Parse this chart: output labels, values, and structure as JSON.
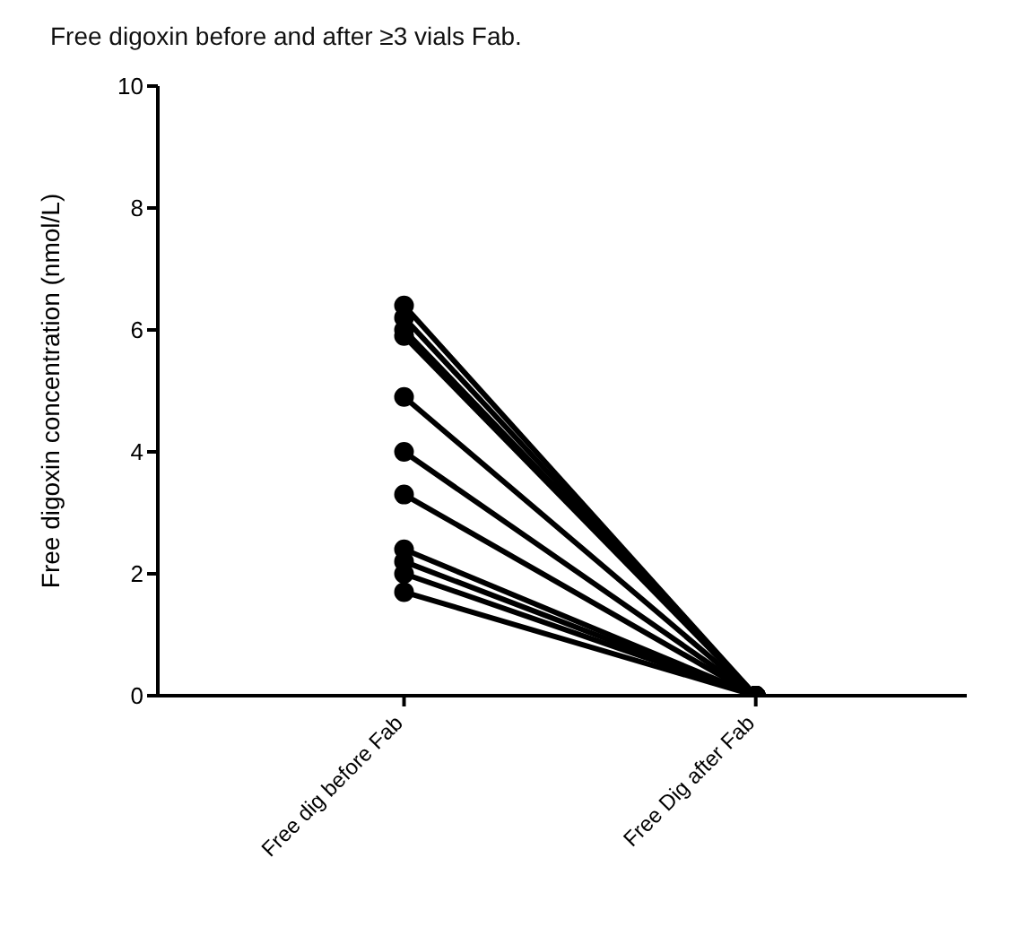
{
  "chart_data": {
    "type": "line",
    "title": "Free digoxin before and after ≥3 vials Fab.",
    "ylabel": "Free digoxin concentration (nmol/L)",
    "categories": [
      "Free dig before Fab",
      "Free Dig after Fab"
    ],
    "ylim": [
      0,
      10
    ],
    "yticks": [
      0,
      2,
      4,
      6,
      8,
      10
    ],
    "marker": "circle",
    "line_style": "solid",
    "series": [
      {
        "color": "#000000",
        "values": [
          6.4,
          0
        ]
      },
      {
        "color": "#000000",
        "values": [
          6.2,
          0
        ]
      },
      {
        "color": "#000000",
        "values": [
          6.0,
          0
        ]
      },
      {
        "color": "#000000",
        "values": [
          5.9,
          0
        ]
      },
      {
        "color": "#000000",
        "values": [
          4.9,
          0
        ]
      },
      {
        "color": "#000000",
        "values": [
          4.0,
          0
        ]
      },
      {
        "color": "#000000",
        "values": [
          3.3,
          0
        ]
      },
      {
        "color": "#000000",
        "values": [
          2.4,
          0
        ]
      },
      {
        "color": "#000000",
        "values": [
          2.2,
          0
        ]
      },
      {
        "color": "#000000",
        "values": [
          2.0,
          0
        ]
      },
      {
        "color": "#000000",
        "values": [
          1.7,
          0
        ]
      }
    ]
  }
}
